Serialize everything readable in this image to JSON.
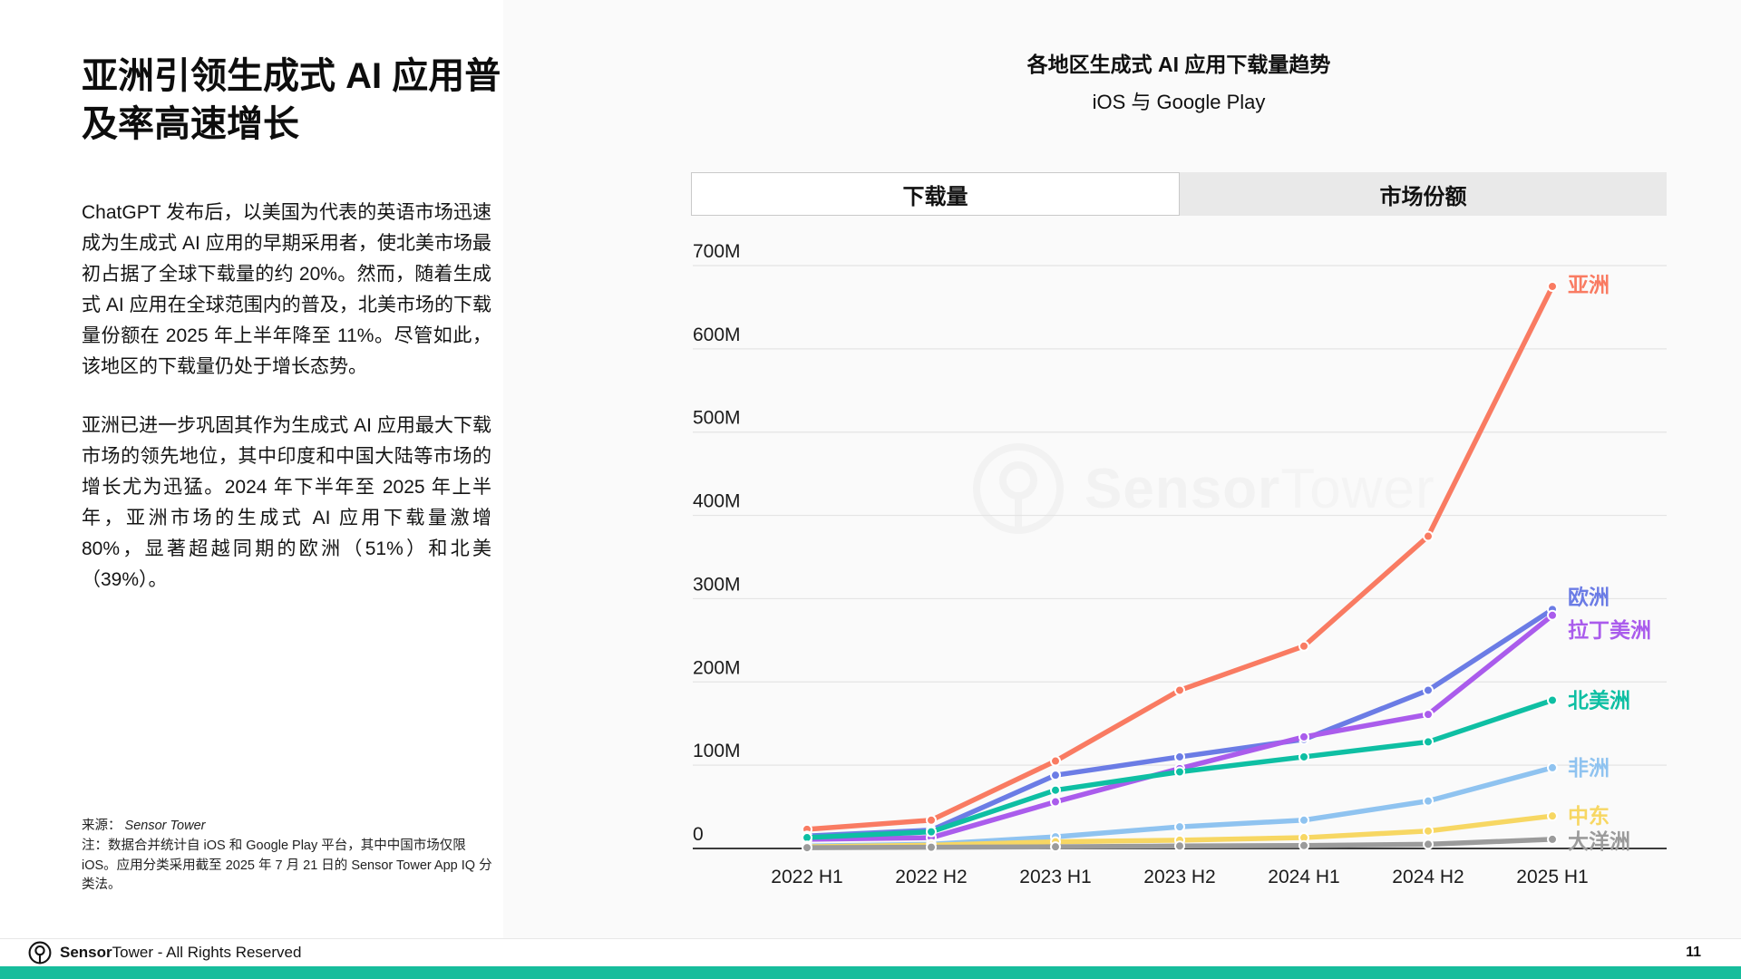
{
  "left": {
    "title": "亚洲引领生成式 AI 应用普及率高速增长",
    "paragraphs": [
      "ChatGPT 发布后，以美国为代表的英语市场迅速成为生成式 AI 应用的早期采用者，使北美市场最初占据了全球下载量的约 20%。然而，随着生成式 AI 应用在全球范围内的普及，北美市场的下载量份额在 2025 年上半年降至 11%。尽管如此，该地区的下载量仍处于增长态势。",
      "亚洲已进一步巩固其作为生成式 AI 应用最大下载市场的领先地位，其中印度和中国大陆等市场的增长尤为迅猛。2024 年下半年至 2025 年上半年，亚洲市场的生成式 AI 应用下载量激增 80%，显著超越同期的欧洲（51%）和北美（39%）。"
    ],
    "source_label": "来源：",
    "source_value": "Sensor Tower",
    "note": "注：数据合并统计自 iOS 和 Google Play 平台，其中中国市场仅限 iOS。应用分类采用截至 2025 年 7 月 21 日的 Sensor Tower App IQ 分类法。"
  },
  "chart": {
    "title_pre": "各地区生成式 ",
    "title_em": "AI",
    "title_post": " 应用下载量趋势",
    "subtitle": "iOS 与 Google Play",
    "tabs": [
      {
        "label": "下载量",
        "active": true
      },
      {
        "label": "市场份额",
        "active": false
      }
    ]
  },
  "watermark": {
    "bold": "Sensor",
    "light": "Tower"
  },
  "footer": {
    "brand_bold": "Sensor",
    "brand_light": "Tower",
    "rights": " - All Rights Reserved",
    "page_number": "11"
  },
  "chart_data": {
    "type": "line",
    "title": "各地区生成式 AI 应用下载量趋势",
    "subtitle": "iOS 与 Google Play",
    "unit": "downloads, millions",
    "grid": true,
    "legend_position": "right-of-line-end",
    "categories": [
      "2022 H1",
      "2022 H2",
      "2023 H1",
      "2023 H2",
      "2024 H1",
      "2024 H2",
      "2025 H1"
    ],
    "ylim": [
      0,
      700
    ],
    "y_ticks": [
      {
        "value": 0,
        "label": "0"
      },
      {
        "value": 100,
        "label": "100M"
      },
      {
        "value": 200,
        "label": "200M"
      },
      {
        "value": 300,
        "label": "300M"
      },
      {
        "value": 400,
        "label": "400M"
      },
      {
        "value": 500,
        "label": "500M"
      },
      {
        "value": 600,
        "label": "600M"
      },
      {
        "value": 700,
        "label": "700M"
      }
    ],
    "series": [
      {
        "name": "亚洲",
        "color": "#F97B62",
        "values": [
          23,
          34,
          105,
          190,
          243,
          375,
          675
        ],
        "label_dy": -2
      },
      {
        "name": "欧洲",
        "color": "#6B7CE5",
        "values": [
          15,
          22,
          88,
          110,
          131,
          190,
          287
        ],
        "label_dy": -14
      },
      {
        "name": "拉丁美洲",
        "color": "#AA5CEC",
        "values": [
          11,
          13,
          56,
          96,
          134,
          161,
          280
        ],
        "label_dy": 16
      },
      {
        "name": "北美洲",
        "color": "#0EBFA3",
        "values": [
          13,
          20,
          70,
          92,
          110,
          128,
          178
        ],
        "label_dy": 0
      },
      {
        "name": "非洲",
        "color": "#8FC3F0",
        "values": [
          3,
          5,
          14,
          26,
          34,
          57,
          97
        ],
        "label_dy": 0
      },
      {
        "name": "中东",
        "color": "#F7D763",
        "values": [
          2,
          4,
          8,
          10,
          13,
          21,
          39
        ],
        "label_dy": 0
      },
      {
        "name": "大洋洲",
        "color": "#9B9B9B",
        "values": [
          1,
          1.5,
          2,
          3,
          3.5,
          5,
          11
        ],
        "label_dy": 2
      }
    ]
  }
}
